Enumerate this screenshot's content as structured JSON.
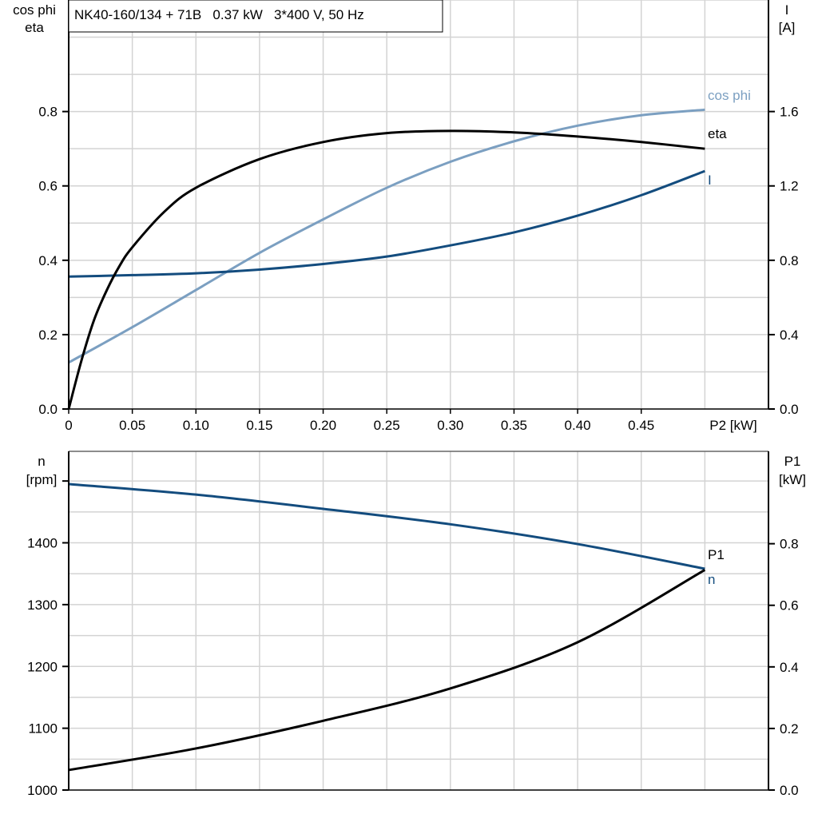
{
  "chart_data": [
    {
      "type": "line",
      "title": "NK40-160/134 + 71B   0.37 kW   3*400 V, 50 Hz",
      "xlabel": "P2 [kW]",
      "ylabel_left": [
        "cos phi",
        "eta"
      ],
      "ylabel_right": [
        "I",
        "[A]"
      ],
      "xlim": [
        0,
        0.55
      ],
      "ylim_left": [
        0,
        1.1
      ],
      "ylim_right": [
        0,
        2.2
      ],
      "grid": true,
      "x_ticks": [
        "0",
        "0.05",
        "0.10",
        "0.15",
        "0.20",
        "0.25",
        "0.30",
        "0.35",
        "0.40",
        "0.45"
      ],
      "y_ticks_left": [
        "0.0",
        "0.2",
        "0.4",
        "0.6",
        "0.8"
      ],
      "y_ticks_right": [
        "0.0",
        "0.4",
        "0.8",
        "1.2",
        "1.6"
      ],
      "colors": {
        "cos_phi": "#7b9fc1",
        "eta": "#000000",
        "I": "#134c7e"
      },
      "series": [
        {
          "name": "cos phi",
          "axis": "left",
          "x": [
            0,
            0.05,
            0.1,
            0.15,
            0.2,
            0.25,
            0.3,
            0.35,
            0.4,
            0.45,
            0.5
          ],
          "y": [
            0.125,
            0.22,
            0.32,
            0.42,
            0.51,
            0.595,
            0.665,
            0.72,
            0.762,
            0.79,
            0.805
          ]
        },
        {
          "name": "eta",
          "axis": "left",
          "x": [
            0,
            0.01,
            0.02,
            0.03,
            0.04,
            0.05,
            0.075,
            0.1,
            0.15,
            0.2,
            0.25,
            0.3,
            0.35,
            0.4,
            0.45,
            0.5
          ],
          "y": [
            0,
            0.13,
            0.24,
            0.32,
            0.385,
            0.435,
            0.53,
            0.595,
            0.672,
            0.718,
            0.742,
            0.748,
            0.744,
            0.733,
            0.718,
            0.7
          ]
        },
        {
          "name": "I",
          "axis": "right",
          "x": [
            0,
            0.05,
            0.1,
            0.15,
            0.2,
            0.25,
            0.3,
            0.35,
            0.4,
            0.45,
            0.5
          ],
          "y": [
            0.712,
            0.72,
            0.73,
            0.75,
            0.78,
            0.82,
            0.88,
            0.95,
            1.04,
            1.15,
            1.28
          ]
        }
      ]
    },
    {
      "type": "line",
      "ylabel_left": [
        "n",
        "[rpm]"
      ],
      "ylabel_right": [
        "P1",
        "[kW]"
      ],
      "xlim": [
        0,
        0.55
      ],
      "ylim_left": [
        1000,
        1548
      ],
      "ylim_right": [
        0,
        1.1
      ],
      "grid": true,
      "y_ticks_left": [
        "1000",
        "1100",
        "1200",
        "1300",
        "1400"
      ],
      "y_ticks_right": [
        "0.0",
        "0.2",
        "0.4",
        "0.6",
        "0.8"
      ],
      "colors": {
        "n": "#134c7e",
        "P1": "#000000"
      },
      "series": [
        {
          "name": "n",
          "axis": "left",
          "x": [
            0,
            0.1,
            0.2,
            0.3,
            0.4,
            0.5
          ],
          "y": [
            1495,
            1478,
            1455,
            1430,
            1398,
            1358
          ]
        },
        {
          "name": "P1",
          "axis": "right",
          "x": [
            0,
            0.1,
            0.2,
            0.3,
            0.4,
            0.5
          ],
          "y": [
            0.065,
            0.135,
            0.225,
            0.33,
            0.48,
            0.715
          ]
        }
      ]
    }
  ]
}
